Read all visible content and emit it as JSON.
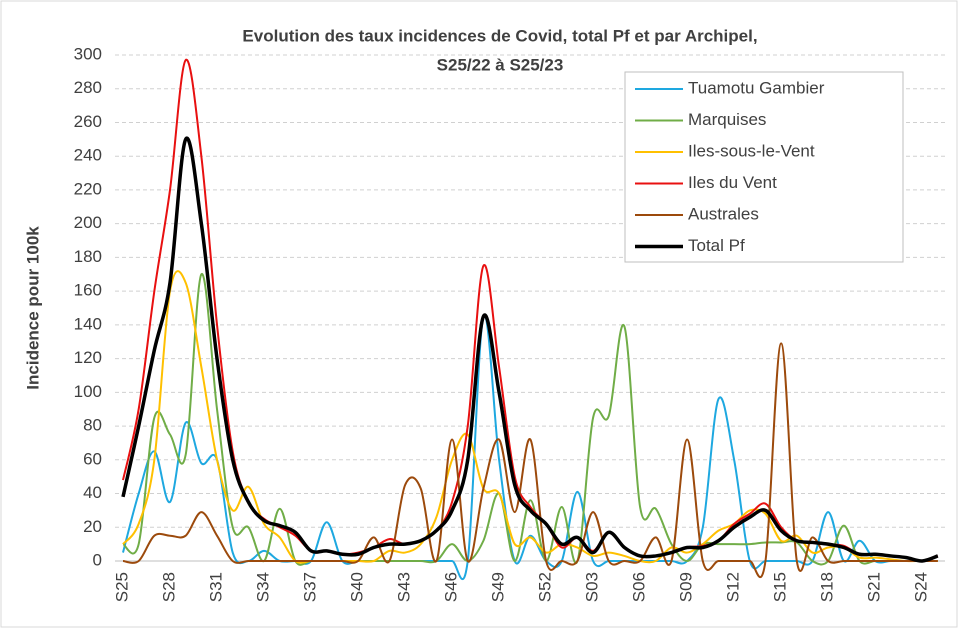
{
  "chart_data": {
    "type": "line",
    "title": [
      "Evolution des taux incidences de Covid, total  Pf et par Archipel,",
      "S25/22 à S25/23"
    ],
    "y_label": "Incidence pour 100k",
    "categories": [
      "S25",
      null,
      null,
      "S28",
      null,
      null,
      "S31",
      null,
      null,
      "S34",
      null,
      null,
      "S37",
      null,
      null,
      "S40",
      null,
      null,
      "S43",
      null,
      null,
      "S46",
      null,
      null,
      "S49",
      null,
      null,
      "S52",
      null,
      null,
      "S03",
      null,
      null,
      "S06",
      null,
      null,
      "S09",
      null,
      null,
      "S12",
      null,
      null,
      "S15",
      null,
      null,
      "S18",
      null,
      null,
      "S21",
      null,
      null,
      "S24",
      null
    ],
    "ylim": [
      0,
      300
    ],
    "yticks": [
      0,
      20,
      40,
      60,
      80,
      100,
      120,
      140,
      160,
      180,
      200,
      220,
      240,
      260,
      280,
      300
    ],
    "grid": true,
    "legend": "upper right",
    "smooth": true,
    "series": [
      {
        "name": "Tuamotu Gambier",
        "color": "#1ea8e0",
        "width": 2,
        "values": [
          5,
          40,
          65,
          35,
          82,
          58,
          60,
          5,
          0,
          6,
          0,
          0,
          0,
          23,
          0,
          0,
          0,
          0,
          0,
          0,
          0,
          0,
          0,
          145,
          60,
          0,
          15,
          0,
          0,
          41,
          0,
          0,
          0,
          0,
          0,
          0,
          0,
          20,
          96,
          60,
          0,
          0,
          0,
          0,
          0,
          29,
          0,
          12,
          0,
          0,
          0,
          0,
          0
        ]
      },
      {
        "name": "Marquises",
        "color": "#70ad47",
        "width": 2,
        "values": [
          10,
          10,
          85,
          75,
          63,
          170,
          90,
          20,
          20,
          0,
          31,
          0,
          0,
          0,
          0,
          0,
          0,
          0,
          0,
          0,
          0,
          10,
          0,
          12,
          40,
          0,
          36,
          0,
          32,
          0,
          85,
          86,
          139,
          32,
          31,
          10,
          0,
          10,
          10,
          10,
          10,
          11,
          11,
          11,
          0,
          0,
          21,
          0,
          0,
          0,
          0,
          0,
          0
        ]
      },
      {
        "name": "Iles-sous-le-Vent",
        "color": "#ffc000",
        "width": 2,
        "values": [
          10,
          22,
          60,
          160,
          165,
          115,
          60,
          30,
          44,
          22,
          14,
          0,
          0,
          0,
          0,
          0,
          0,
          6,
          5,
          10,
          26,
          60,
          75,
          43,
          40,
          10,
          14,
          5,
          10,
          8,
          3,
          5,
          3,
          0,
          0,
          8,
          5,
          10,
          18,
          22,
          30,
          28,
          12,
          15,
          5,
          8,
          8,
          2,
          2,
          1,
          0,
          0,
          0
        ]
      },
      {
        "name": "Iles du Vent",
        "color": "#e81010",
        "width": 2,
        "values": [
          48,
          90,
          160,
          220,
          297,
          240,
          140,
          65,
          35,
          25,
          20,
          15,
          6,
          6,
          4,
          5,
          8,
          13,
          10,
          12,
          18,
          35,
          80,
          175,
          115,
          50,
          32,
          22,
          8,
          14,
          6,
          17,
          8,
          3,
          3,
          5,
          8,
          9,
          12,
          22,
          28,
          34,
          20,
          12,
          11,
          10,
          9,
          4,
          4,
          3,
          2,
          0,
          3
        ]
      },
      {
        "name": "Australes",
        "color": "#9c4a0c",
        "width": 2,
        "values": [
          0,
          0,
          15,
          15,
          15,
          29,
          15,
          0,
          0,
          0,
          0,
          0,
          0,
          0,
          0,
          0,
          14,
          0,
          45,
          43,
          0,
          72,
          0,
          43,
          72,
          29,
          72,
          0,
          0,
          0,
          29,
          0,
          0,
          0,
          14,
          0,
          72,
          0,
          0,
          0,
          0,
          0,
          129,
          0,
          14,
          0,
          0,
          0,
          0,
          0,
          0,
          0,
          0
        ]
      },
      {
        "name": "Total Pf",
        "color": "#000000",
        "width": 3.5,
        "values": [
          38,
          80,
          125,
          165,
          250,
          200,
          120,
          60,
          35,
          24,
          21,
          17,
          6,
          6,
          4,
          4,
          8,
          10,
          10,
          12,
          18,
          30,
          60,
          145,
          100,
          45,
          30,
          22,
          10,
          14,
          5,
          17,
          8,
          3,
          3,
          5,
          8,
          8,
          12,
          20,
          26,
          30,
          18,
          12,
          11,
          10,
          8,
          4,
          4,
          3,
          2,
          0,
          3
        ]
      }
    ]
  }
}
